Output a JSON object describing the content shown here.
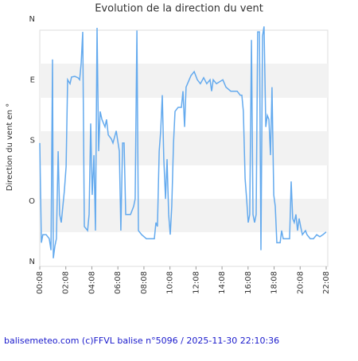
{
  "chart_data": {
    "type": "line",
    "title": "Evolution de la direction du vent",
    "y_label": "Direction du vent en °",
    "footer": "balisemeteo.com (c)FFVL balise n°5096 / 2025-11-30 22:10:36",
    "color": "#64aaee",
    "ylim": [
      0,
      360
    ],
    "yticks": [
      {
        "value": 0,
        "label": "N"
      },
      {
        "value": 90,
        "label": "E"
      },
      {
        "value": 180,
        "label": "S"
      },
      {
        "value": 270,
        "label": "O"
      },
      {
        "value": 360,
        "label": "N"
      }
    ],
    "xlim": [
      0,
      22
    ],
    "xticks": [
      {
        "value": 0,
        "label": "00:08"
      },
      {
        "value": 2,
        "label": "02:08"
      },
      {
        "value": 4,
        "label": "04:08"
      },
      {
        "value": 6,
        "label": "06:08"
      },
      {
        "value": 8,
        "label": "08:08"
      },
      {
        "value": 10,
        "label": "10:08"
      },
      {
        "value": 12,
        "label": "12:08"
      },
      {
        "value": 14,
        "label": "14:08"
      },
      {
        "value": 16,
        "label": "16:08"
      },
      {
        "value": 18,
        "label": "18:08"
      },
      {
        "value": 20,
        "label": "20:08"
      },
      {
        "value": 22,
        "label": "22:08"
      }
    ],
    "x": [
      0,
      0.12,
      0.24,
      0.49,
      0.73,
      0.86,
      0.98,
      1.04,
      1.16,
      1.28,
      1.41,
      1.53,
      1.65,
      1.89,
      2.02,
      2.14,
      2.32,
      2.44,
      2.69,
      2.93,
      3.06,
      3.18,
      3.3,
      3.42,
      3.67,
      3.79,
      3.91,
      4.03,
      4.16,
      4.28,
      4.4,
      4.52,
      4.64,
      4.77,
      5.01,
      5.13,
      5.26,
      5.5,
      5.62,
      5.87,
      6.11,
      6.23,
      6.36,
      6.48,
      6.6,
      6.97,
      7.21,
      7.33,
      7.46,
      7.58,
      7.82,
      8.19,
      8.8,
      8.92,
      9.04,
      9.17,
      9.29,
      9.41,
      9.53,
      9.66,
      9.78,
      9.9,
      10.02,
      10.14,
      10.27,
      10.39,
      10.63,
      10.88,
      11,
      11.12,
      11.24,
      11.61,
      11.86,
      12.1,
      12.34,
      12.59,
      12.83,
      13.08,
      13.2,
      13.32,
      13.57,
      14.06,
      14.3,
      14.67,
      14.91,
      15.16,
      15.4,
      15.52,
      15.64,
      15.77,
      15.89,
      16.01,
      16.13,
      16.26,
      16.38,
      16.5,
      16.62,
      16.74,
      16.87,
      16.99,
      17.11,
      17.23,
      17.36,
      17.48,
      17.6,
      17.72,
      17.84,
      17.97,
      18.09,
      18.21,
      18.46,
      18.58,
      18.7,
      18.94,
      19.19,
      19.31,
      19.43,
      19.55,
      19.68,
      19.8,
      19.92,
      20.04,
      20.17,
      20.41,
      20.53,
      20.78,
      21.02,
      21.27,
      21.51,
      21.75,
      22
    ],
    "values": [
      184,
      332,
      320,
      320,
      326,
      343,
      60,
      355,
      337,
      326,
      196,
      290,
      302,
      255,
      219,
      90,
      96,
      86,
      85,
      87,
      90,
      66,
      19,
      308,
      314,
      290,
      155,
      261,
      202,
      314,
      13,
      196,
      137,
      149,
      160,
      149,
      172,
      178,
      184,
      166,
      196,
      314,
      184,
      184,
      290,
      290,
      278,
      267,
      17,
      314,
      320,
      326,
      326,
      302,
      308,
      196,
      166,
      113,
      208,
      267,
      208,
      290,
      320,
      278,
      184,
      137,
      131,
      131,
      107,
      160,
      101,
      84,
      78,
      90,
      96,
      87,
      96,
      90,
      107,
      90,
      96,
      90,
      101,
      107,
      107,
      107,
      113,
      113,
      137,
      237,
      267,
      302,
      290,
      31,
      290,
      302,
      290,
      19,
      19,
      343,
      25,
      11,
      160,
      143,
      149,
      202,
      101,
      261,
      278,
      332,
      332,
      314,
      326,
      326,
      326,
      241,
      296,
      302,
      290,
      314,
      296,
      308,
      320,
      314,
      320,
      326,
      326,
      320,
      323,
      320,
      316
    ]
  }
}
